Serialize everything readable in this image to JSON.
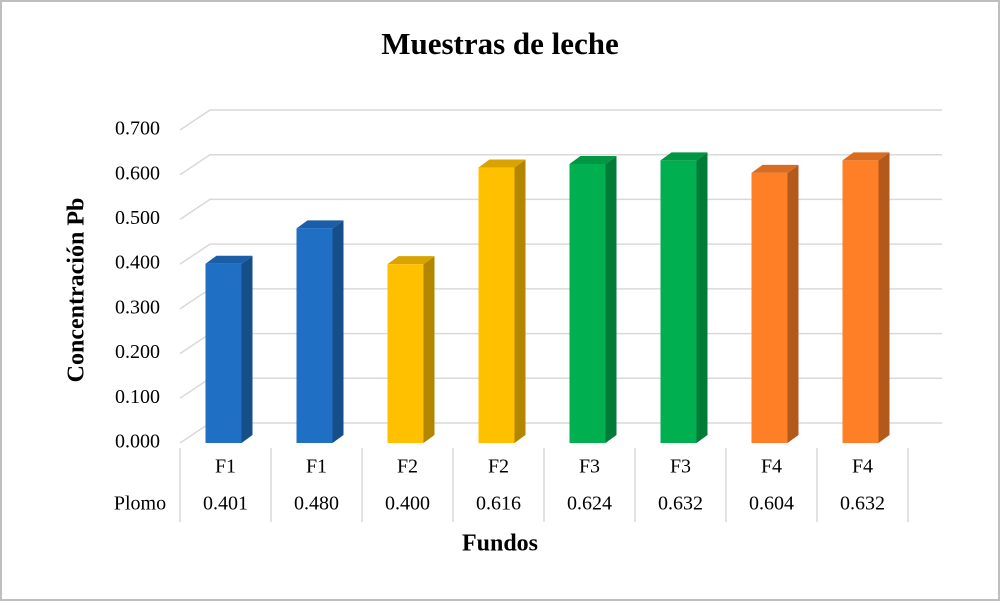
{
  "chart_data": {
    "type": "bar3d",
    "title": "Muestras de leche",
    "x_label": "Fundos",
    "y_label": "Concentración Pb",
    "categories": [
      "F1",
      "F1",
      "F2",
      "F2",
      "F3",
      "F3",
      "F4",
      "F4"
    ],
    "series": [
      {
        "name": "Plomo",
        "values": [
          0.401,
          0.48,
          0.4,
          0.616,
          0.624,
          0.632,
          0.604,
          0.632
        ],
        "value_labels": [
          "0.401",
          "0.480",
          "0.400",
          "0.616",
          "0.624",
          "0.632",
          "0.604",
          "0.632"
        ],
        "colors": [
          "#1f6fc5",
          "#1f6fc5",
          "#ffc000",
          "#ffc000",
          "#00b050",
          "#00b050",
          "#ff7f27",
          "#ff7f27"
        ]
      }
    ],
    "ylim": [
      0,
      0.7
    ],
    "yticks": [
      {
        "value": 0,
        "label": "0.000"
      },
      {
        "value": 0.1,
        "label": "0.100"
      },
      {
        "value": 0.2,
        "label": "0.200"
      },
      {
        "value": 0.3,
        "label": "0.300"
      },
      {
        "value": 0.4,
        "label": "0.400"
      },
      {
        "value": 0.5,
        "label": "0.500"
      },
      {
        "value": 0.6,
        "label": "0.600"
      },
      {
        "value": 0.7,
        "label": "0.700"
      }
    ],
    "grid": true
  }
}
